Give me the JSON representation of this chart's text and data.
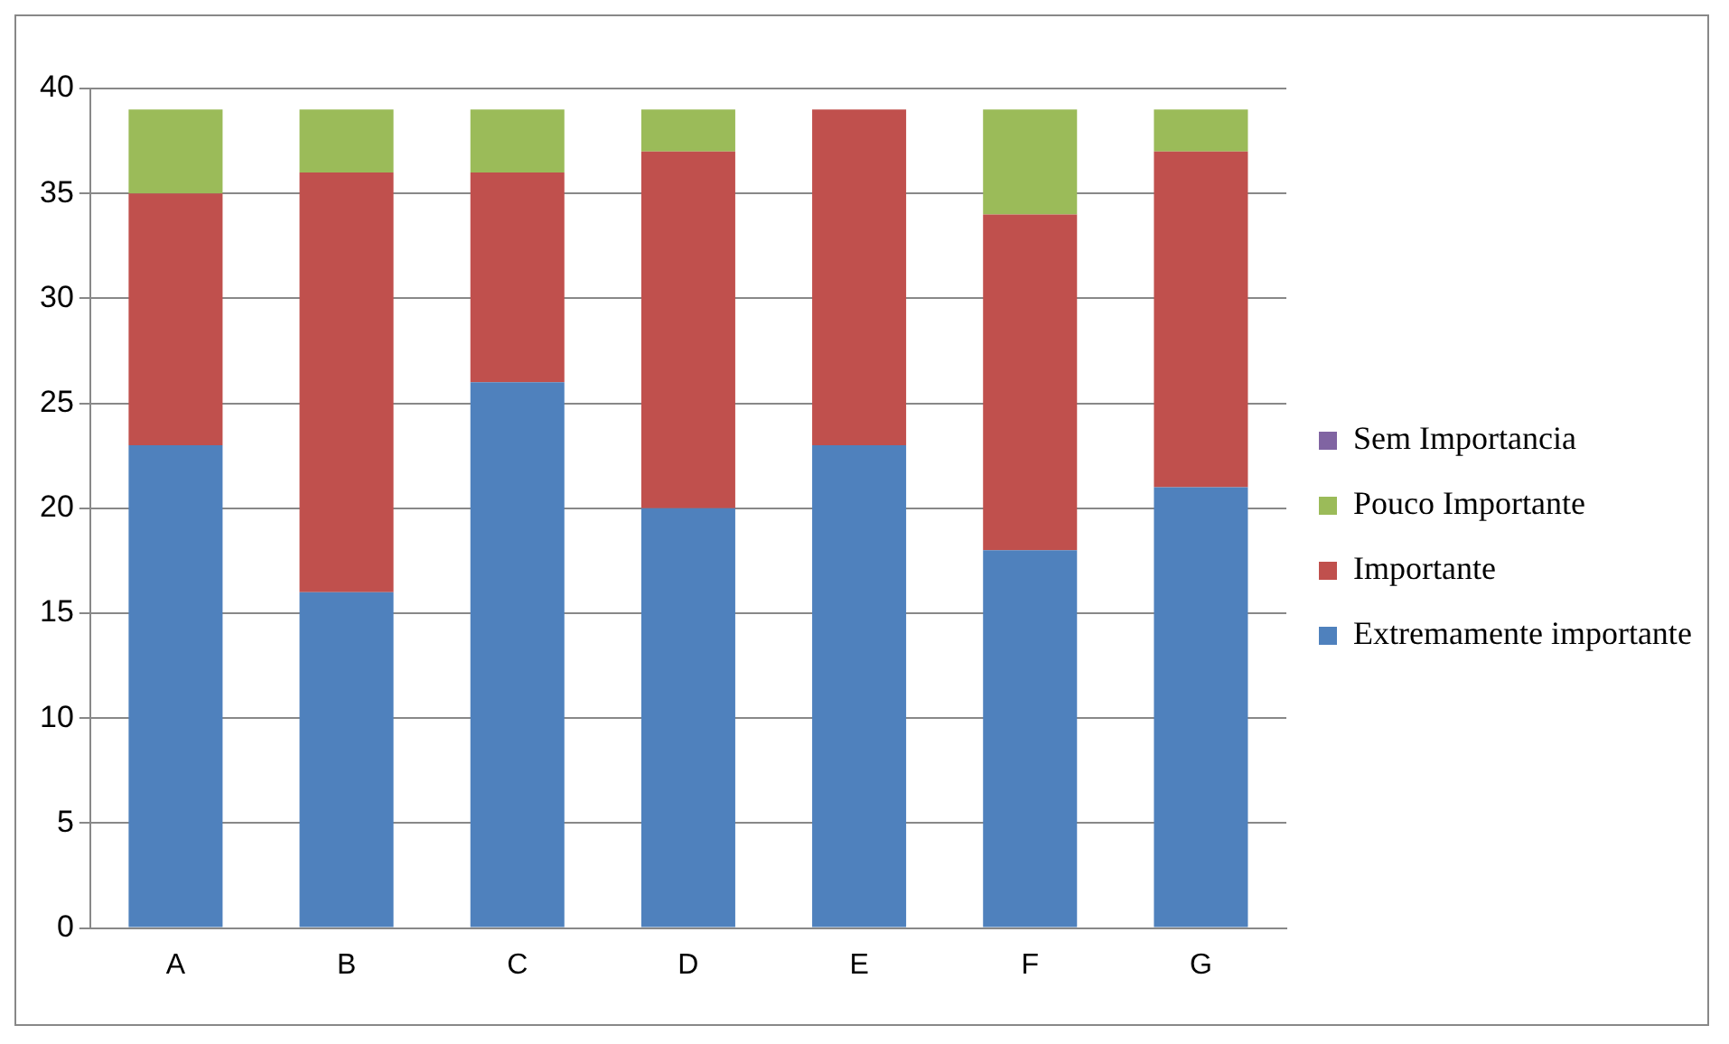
{
  "chart_data": {
    "type": "bar",
    "stacked": true,
    "categories": [
      "A",
      "B",
      "C",
      "D",
      "E",
      "F",
      "G"
    ],
    "series": [
      {
        "name": "Extremamente importante",
        "color": "#4f81bd",
        "values": [
          23,
          16,
          26,
          20,
          23,
          18,
          21
        ]
      },
      {
        "name": "Importante",
        "color": "#c0504d",
        "values": [
          12,
          20,
          10,
          17,
          16,
          16,
          16
        ]
      },
      {
        "name": "Pouco Importante",
        "color": "#9bbb59",
        "values": [
          4,
          3,
          3,
          2,
          0,
          5,
          2
        ]
      },
      {
        "name": "Sem Importancia",
        "color": "#8064a2",
        "values": [
          0,
          0,
          0,
          0,
          0,
          0,
          0
        ]
      }
    ],
    "ylim": [
      0,
      40
    ],
    "yticks": [
      0,
      5,
      10,
      15,
      20,
      25,
      30,
      35,
      40
    ],
    "grid": "y",
    "legend": "right"
  }
}
